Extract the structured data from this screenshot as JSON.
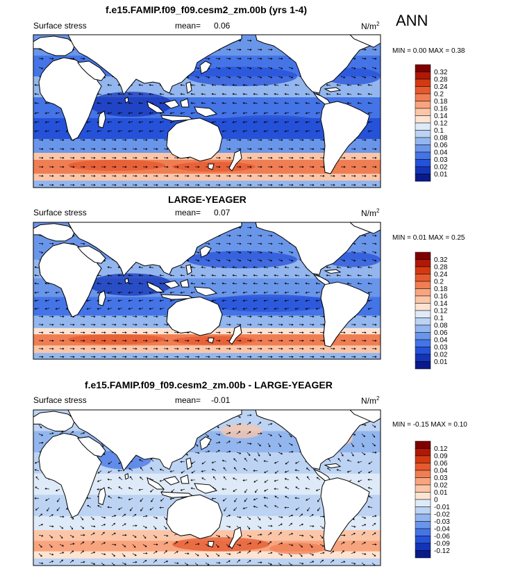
{
  "season": "ANN",
  "panels": [
    {
      "title": "f.e15.FAMIP.f09_f09.cesm2_zm.00b (yrs 1-4)",
      "var_label": "Surface stress",
      "mean_label": "mean=",
      "mean_value": "0.06",
      "units": "N/m",
      "units_sup": "2",
      "minmax": "MIN =   0.00 MAX =   0.38",
      "colorbar": {
        "labels": [
          "0.32",
          "0.28",
          "0.24",
          "0.2",
          "0.18",
          "0.16",
          "0.14",
          "0.12",
          "0.1",
          "0.08",
          "0.06",
          "0.04",
          "0.03",
          "0.02",
          "0.01"
        ],
        "colors": [
          "#7f0000",
          "#b01808",
          "#d33a12",
          "#e65a30",
          "#f07e54",
          "#f8a47e",
          "#fbc6a8",
          "#fde4d2",
          "#deeaf8",
          "#bcd3f3",
          "#93b6ee",
          "#6a96ea",
          "#4474e6",
          "#2552d8",
          "#1434b8",
          "#0a1a8a"
        ]
      }
    },
    {
      "title": "LARGE-YEAGER",
      "var_label": "Surface stress",
      "mean_label": "mean=",
      "mean_value": "0.07",
      "units": "N/m",
      "units_sup": "2",
      "minmax": "MIN =   0.01 MAX =   0.25",
      "colorbar": {
        "labels": [
          "0.32",
          "0.28",
          "0.24",
          "0.2",
          "0.18",
          "0.16",
          "0.14",
          "0.12",
          "0.1",
          "0.08",
          "0.06",
          "0.04",
          "0.03",
          "0.02",
          "0.01"
        ],
        "colors": [
          "#7f0000",
          "#b01808",
          "#d33a12",
          "#e65a30",
          "#f07e54",
          "#f8a47e",
          "#fbc6a8",
          "#fde4d2",
          "#deeaf8",
          "#bcd3f3",
          "#93b6ee",
          "#6a96ea",
          "#4474e6",
          "#2552d8",
          "#1434b8",
          "#0a1a8a"
        ]
      }
    },
    {
      "title": "f.e15.FAMIP.f09_f09.cesm2_zm.00b - LARGE-YEAGER",
      "var_label": "Surface stress",
      "mean_label": "mean=",
      "mean_value": "-0.01",
      "units": "N/m",
      "units_sup": "2",
      "minmax": "MIN =  -0.15 MAX =   0.10",
      "colorbar": {
        "labels": [
          "0.12",
          "0.09",
          "0.06",
          "0.04",
          "0.03",
          "0.02",
          "0.01",
          "0",
          "-0.01",
          "-0.02",
          "-0.03",
          "-0.04",
          "-0.06",
          "-0.09",
          "-0.12"
        ],
        "colors": [
          "#7f0000",
          "#b01808",
          "#d33a12",
          "#e65a30",
          "#f07e54",
          "#f8a47e",
          "#fbc6a8",
          "#fde4d2",
          "#deeaf8",
          "#bcd3f3",
          "#93b6ee",
          "#6a96ea",
          "#4474e6",
          "#2552d8",
          "#1434b8",
          "#0a1a8a"
        ]
      }
    }
  ]
}
